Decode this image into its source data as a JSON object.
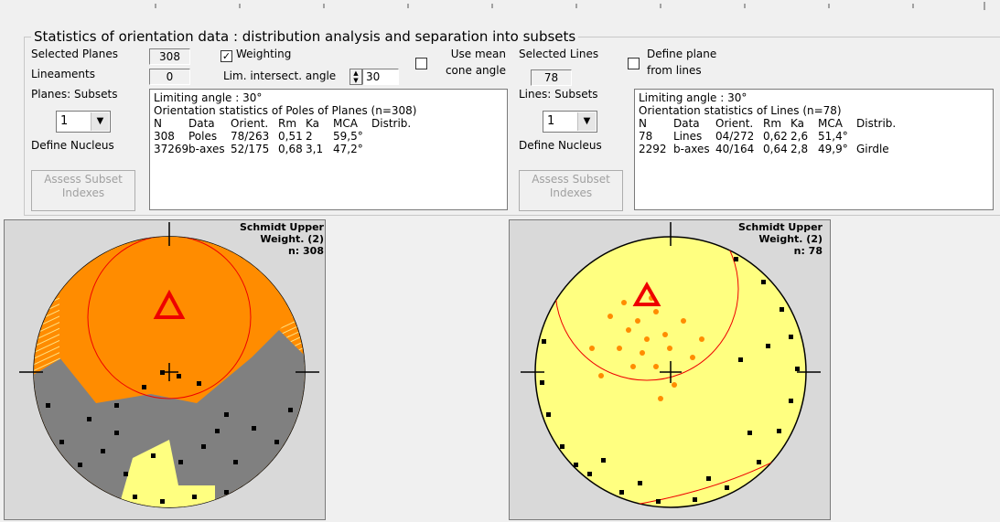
{
  "group_title": "Statistics of orientation data : distribution analysis and separation into subsets",
  "left": {
    "selected_planes_label": "Selected Planes",
    "selected_planes_value": "308",
    "lineaments_label": "Lineaments",
    "lineaments_value": "0",
    "subsets_label": "Planes: Subsets",
    "subset_value": "1",
    "define_nucleus": "Define Nucleus",
    "assess_button": "Assess Subset Indexes",
    "weighting_label": "Weighting",
    "weighting_checked": true,
    "lim_angle_label": "Lim. intersect. angle",
    "lim_angle_value": "30",
    "use_mean_label_1": "Use mean",
    "use_mean_label_2": "cone angle",
    "stats": {
      "line1": "Limiting angle : 30°",
      "line2": "Orientation statistics of Poles of Planes (n=308)",
      "headers": [
        "N",
        "Data",
        "Orient.",
        "Rm",
        "Ka",
        "MCA",
        "Distrib."
      ],
      "rows": [
        [
          "308",
          "Poles",
          "78/263",
          "0,51",
          "2",
          "59,5°",
          ""
        ],
        [
          "37269",
          "b-axes",
          "52/175",
          "0,68",
          "3,1",
          "47,2°",
          ""
        ]
      ]
    },
    "plot": {
      "label_1": "Schmidt Upper",
      "label_2": "Weight. (2)",
      "label_3": "n: 308"
    }
  },
  "right": {
    "selected_lines_label": "Selected Lines",
    "selected_lines_value": "78",
    "define_plane_label_1": "Define plane",
    "define_plane_label_2": "from lines",
    "subsets_label": "Lines: Subsets",
    "subset_value": "1",
    "define_nucleus": "Define Nucleus",
    "assess_button": "Assess Subset Indexes",
    "stats": {
      "line1": "Limiting angle : 30°",
      "line2": "Orientation statistics of Lines (n=78)",
      "headers": [
        "N",
        "Data",
        "Orient.",
        "Rm",
        "Ka",
        "MCA",
        "Distrib."
      ],
      "rows": [
        [
          "78",
          "Lines",
          "04/272",
          "0,62",
          "2,6",
          "51,4°",
          ""
        ],
        [
          "2292",
          "b-axes",
          "40/164",
          "0,64",
          "2,8",
          "49,9°",
          "Girdle"
        ]
      ]
    },
    "plot": {
      "label_1": "Schmidt Upper",
      "label_2": "Weight. (2)",
      "label_3": "n: 78"
    }
  },
  "colors": {
    "orange": "#ff8c00",
    "yellow": "#ffff80",
    "gray": "#808080",
    "red": "#ff0000"
  }
}
